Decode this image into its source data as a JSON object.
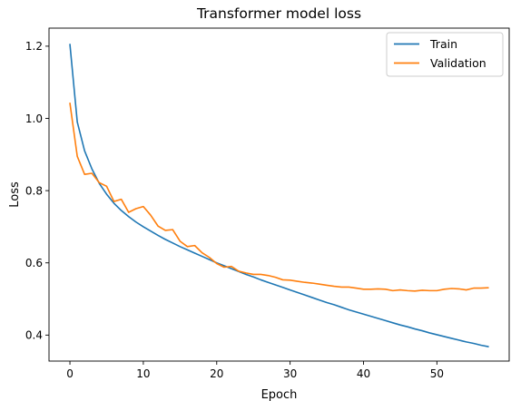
{
  "chart_data": {
    "type": "line",
    "title": "Transformer model loss",
    "xlabel": "Epoch",
    "ylabel": "Loss",
    "xlim": [
      -2.85,
      59.85
    ],
    "ylim": [
      0.328,
      1.25
    ],
    "xticks": [
      0,
      10,
      20,
      30,
      40,
      50
    ],
    "yticks": [
      0.4,
      0.6,
      0.8,
      1.0,
      1.2
    ],
    "ytick_labels": [
      "0.4",
      "0.6",
      "0.8",
      "1.0",
      "1.2"
    ],
    "grid": false,
    "legend_position": "top-right",
    "series": [
      {
        "name": "Train",
        "color": "#1f77b4",
        "values": [
          1.205,
          0.99,
          0.91,
          0.86,
          0.82,
          0.79,
          0.765,
          0.745,
          0.728,
          0.713,
          0.7,
          0.688,
          0.676,
          0.665,
          0.655,
          0.645,
          0.636,
          0.627,
          0.618,
          0.609,
          0.6,
          0.592,
          0.584,
          0.576,
          0.568,
          0.561,
          0.553,
          0.546,
          0.539,
          0.532,
          0.525,
          0.518,
          0.511,
          0.504,
          0.497,
          0.49,
          0.484,
          0.477,
          0.47,
          0.464,
          0.458,
          0.452,
          0.446,
          0.44,
          0.434,
          0.428,
          0.423,
          0.417,
          0.412,
          0.406,
          0.401,
          0.396,
          0.391,
          0.386,
          0.381,
          0.377,
          0.372,
          0.368
        ]
      },
      {
        "name": "Validation",
        "color": "#ff7f0e",
        "values": [
          1.042,
          0.895,
          0.845,
          0.848,
          0.822,
          0.812,
          0.77,
          0.776,
          0.74,
          0.75,
          0.756,
          0.732,
          0.702,
          0.69,
          0.692,
          0.66,
          0.645,
          0.648,
          0.628,
          0.615,
          0.598,
          0.588,
          0.59,
          0.577,
          0.572,
          0.568,
          0.568,
          0.565,
          0.56,
          0.553,
          0.552,
          0.549,
          0.546,
          0.544,
          0.541,
          0.538,
          0.535,
          0.533,
          0.533,
          0.53,
          0.527,
          0.527,
          0.528,
          0.527,
          0.523,
          0.525,
          0.523,
          0.522,
          0.524,
          0.523,
          0.523,
          0.527,
          0.529,
          0.528,
          0.525,
          0.53,
          0.53,
          0.531
        ]
      }
    ]
  }
}
